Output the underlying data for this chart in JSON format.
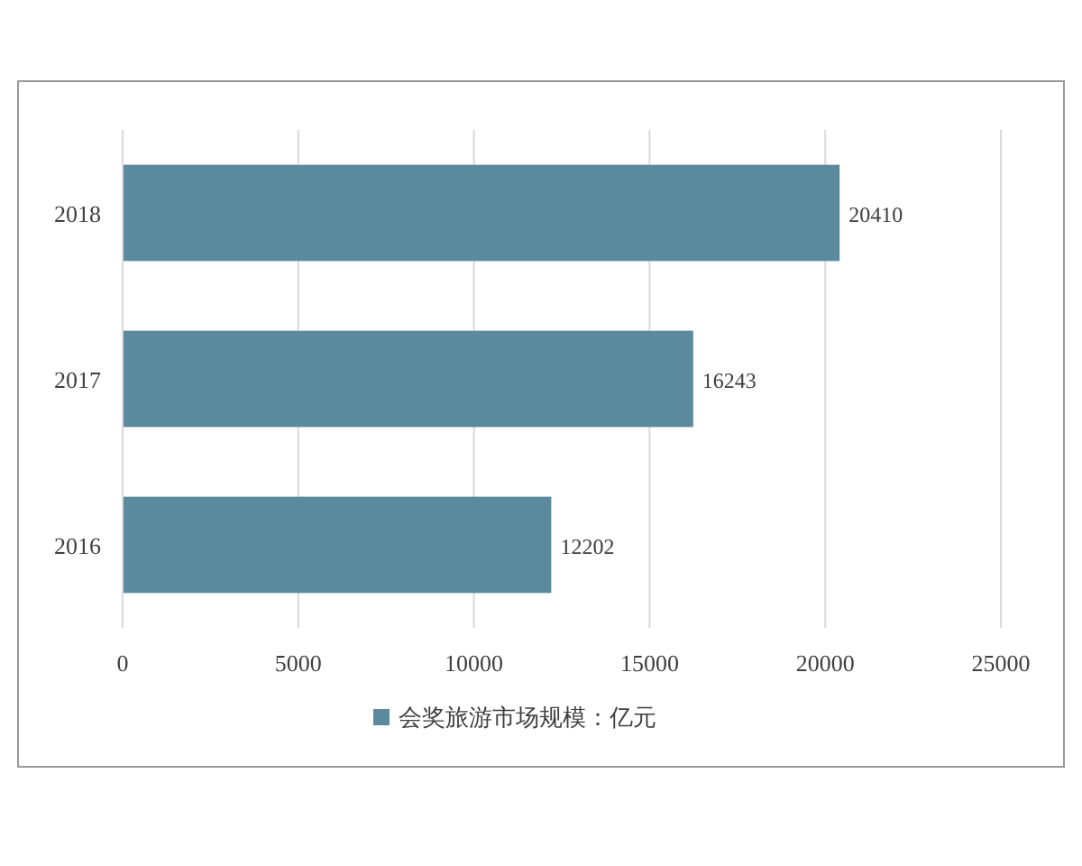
{
  "chart_data": {
    "type": "bar",
    "orientation": "horizontal",
    "categories": [
      "2018",
      "2017",
      "2016"
    ],
    "series": [
      {
        "name": "会奖旅游市场规模：亿元",
        "color": "#5b8a9e",
        "values": [
          20410,
          16243,
          12202
        ]
      }
    ],
    "xlim": [
      0,
      25000
    ],
    "xticks": [
      0,
      5000,
      10000,
      15000,
      20000,
      25000
    ],
    "grid": "x",
    "legend": "bottom",
    "data_labels": true
  }
}
